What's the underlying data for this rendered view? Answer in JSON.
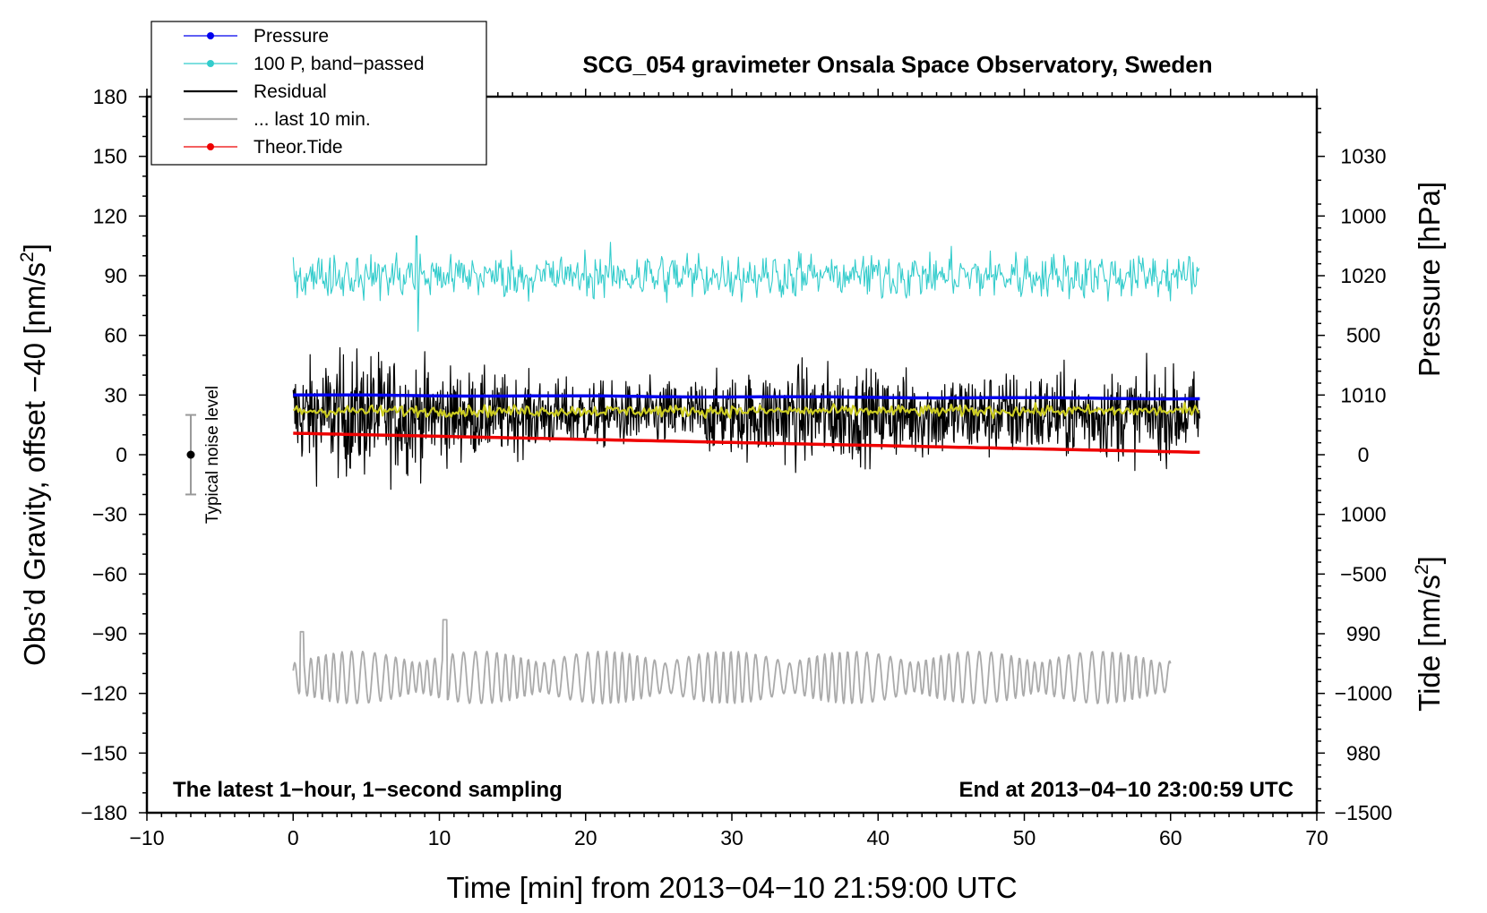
{
  "chart_data": {
    "type": "line",
    "title": "SCG_054 gravimeter Onsala Space Observatory, Sweden",
    "xlabel": "Time [min] from 2013−04−10 21:59:00 UTC",
    "ylabel_left_main": "Obs’d Gravity, offset −40 [nm/s",
    "ylabel_left_sup": "2",
    "ylabel_left_close": "]",
    "ylabel_right_top": "Pressure [hPa]",
    "ylabel_right_bottom_main": "Tide [nm/s",
    "ylabel_right_bottom_sup": "2",
    "ylabel_right_bottom_close": "]",
    "xlim": [
      -10,
      70
    ],
    "ylim": [
      -180,
      180
    ],
    "x_ticks": [
      -10,
      0,
      10,
      20,
      30,
      40,
      50,
      60,
      70
    ],
    "x_tick_labels": [
      "−10",
      "0",
      "10",
      "20",
      "30",
      "40",
      "50",
      "60",
      "70"
    ],
    "y_ticks": [
      180,
      150,
      120,
      90,
      60,
      30,
      0,
      -30,
      -60,
      -90,
      -120,
      -150,
      -180
    ],
    "y_tick_labels": [
      "180",
      "150",
      "120",
      "90",
      "60",
      "30",
      "0",
      "−30",
      "−60",
      "−90",
      "−120",
      "−150",
      "−180"
    ],
    "pressure_axis": {
      "ticks": [
        1030,
        1020,
        1010,
        1000,
        990,
        980
      ],
      "tick_labels": [
        "1030",
        "1020",
        "1010",
        "1000",
        "990",
        "980"
      ],
      "range_hpa": [
        975,
        1035
      ]
    },
    "tide_axis": {
      "ticks": [
        1000,
        500,
        0,
        -500,
        -1000,
        -1500
      ],
      "tick_labels": [
        "1000",
        "500",
        "0",
        "−500",
        "−1000",
        "−1500"
      ],
      "range": [
        -1500,
        1500
      ]
    },
    "legend": [
      {
        "label": "Pressure",
        "color": "#0000ee",
        "marker": true
      },
      {
        "label": "100 P, band−passed",
        "color": "#33cccc",
        "marker": true
      },
      {
        "label": "Residual",
        "color": "#000000",
        "marker": false
      },
      {
        "label": "... last 10 min.",
        "color": "#aaaaaa",
        "marker": false
      },
      {
        "label": "Theor.Tide",
        "color": "#ee0000",
        "marker": true
      }
    ],
    "series": [
      {
        "name": "Pressure",
        "color": "#0000ee",
        "axis": "pressure",
        "x_range": [
          0,
          62
        ],
        "start": 1010.0,
        "end": 1009.7,
        "unit": "hPa"
      },
      {
        "name": "100 P, band-passed",
        "color": "#33cccc",
        "axis": "left",
        "x_range": [
          0,
          62
        ],
        "center": 90,
        "amplitude": 8,
        "min": 62,
        "max": 110
      },
      {
        "name": "Residual",
        "color": "#000000",
        "axis": "left",
        "x_range": [
          0,
          62
        ],
        "center": 20,
        "amplitude": 15,
        "min": -20,
        "max": 72
      },
      {
        "name": "Residual, smoothed",
        "color": "#cccc22",
        "axis": "left",
        "x_range": [
          0,
          62
        ],
        "center": 22,
        "amplitude": 2
      },
      {
        "name": "... last 10 min.",
        "color": "#aaaaaa",
        "axis": "left",
        "x_range": [
          0,
          60
        ],
        "center": -112,
        "amplitude": 12,
        "min": -131,
        "max": -83
      },
      {
        "name": "Theor.Tide",
        "color": "#ee0000",
        "axis": "tide",
        "x_range": [
          0,
          62
        ],
        "start": 90,
        "end": 10,
        "unit": "nm/s2"
      }
    ],
    "annotations": {
      "noise_label": "Typical noise level",
      "noise_center": 0,
      "noise_half_range": 20,
      "noise_x": -7,
      "bottom_left_note": "The latest 1−hour, 1−second sampling",
      "bottom_right_note": "End at 2013−04−10 23:00:59 UTC"
    }
  }
}
